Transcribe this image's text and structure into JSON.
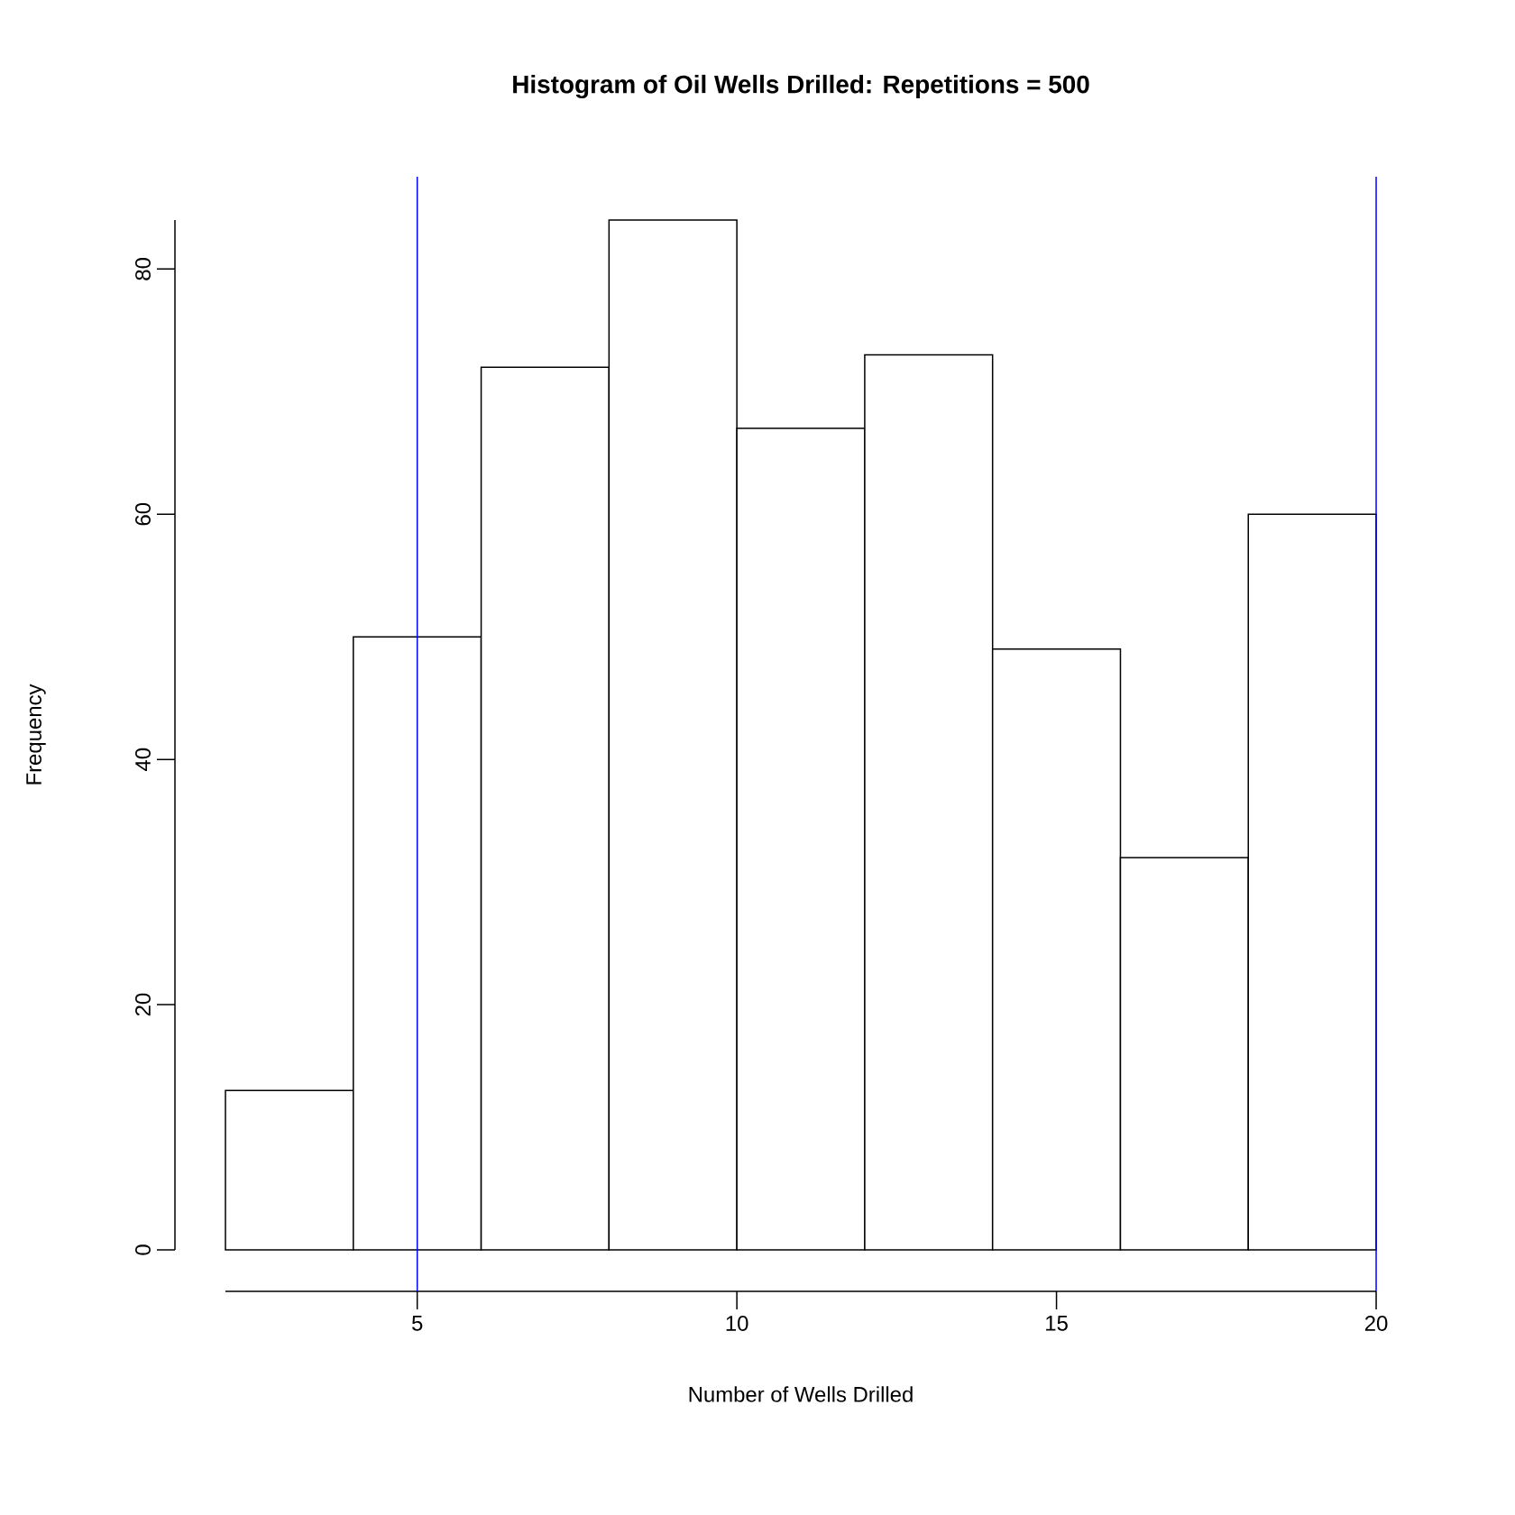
{
  "chart_data": {
    "type": "histogram",
    "title": "Histogram of Oil Wells Drilled: Repetitions = 500",
    "xlabel": "Number of Wells Drilled",
    "ylabel": "Frequency",
    "bins": [
      2,
      4,
      6,
      8,
      10,
      12,
      14,
      16,
      18,
      20
    ],
    "values": [
      13,
      50,
      72,
      84,
      67,
      73,
      49,
      32,
      60
    ],
    "color": "#ffffff",
    "xlim": [
      2,
      20
    ],
    "ylim": [
      0,
      84
    ],
    "xticks": [
      5,
      10,
      15,
      20
    ],
    "yticks": [
      0,
      20,
      40,
      60,
      80
    ],
    "ref_lines": [
      {
        "axis": "x",
        "value": 5,
        "color": "#0000ff"
      },
      {
        "axis": "x",
        "value": 20,
        "color": "#0000ff"
      }
    ],
    "grid": false
  }
}
